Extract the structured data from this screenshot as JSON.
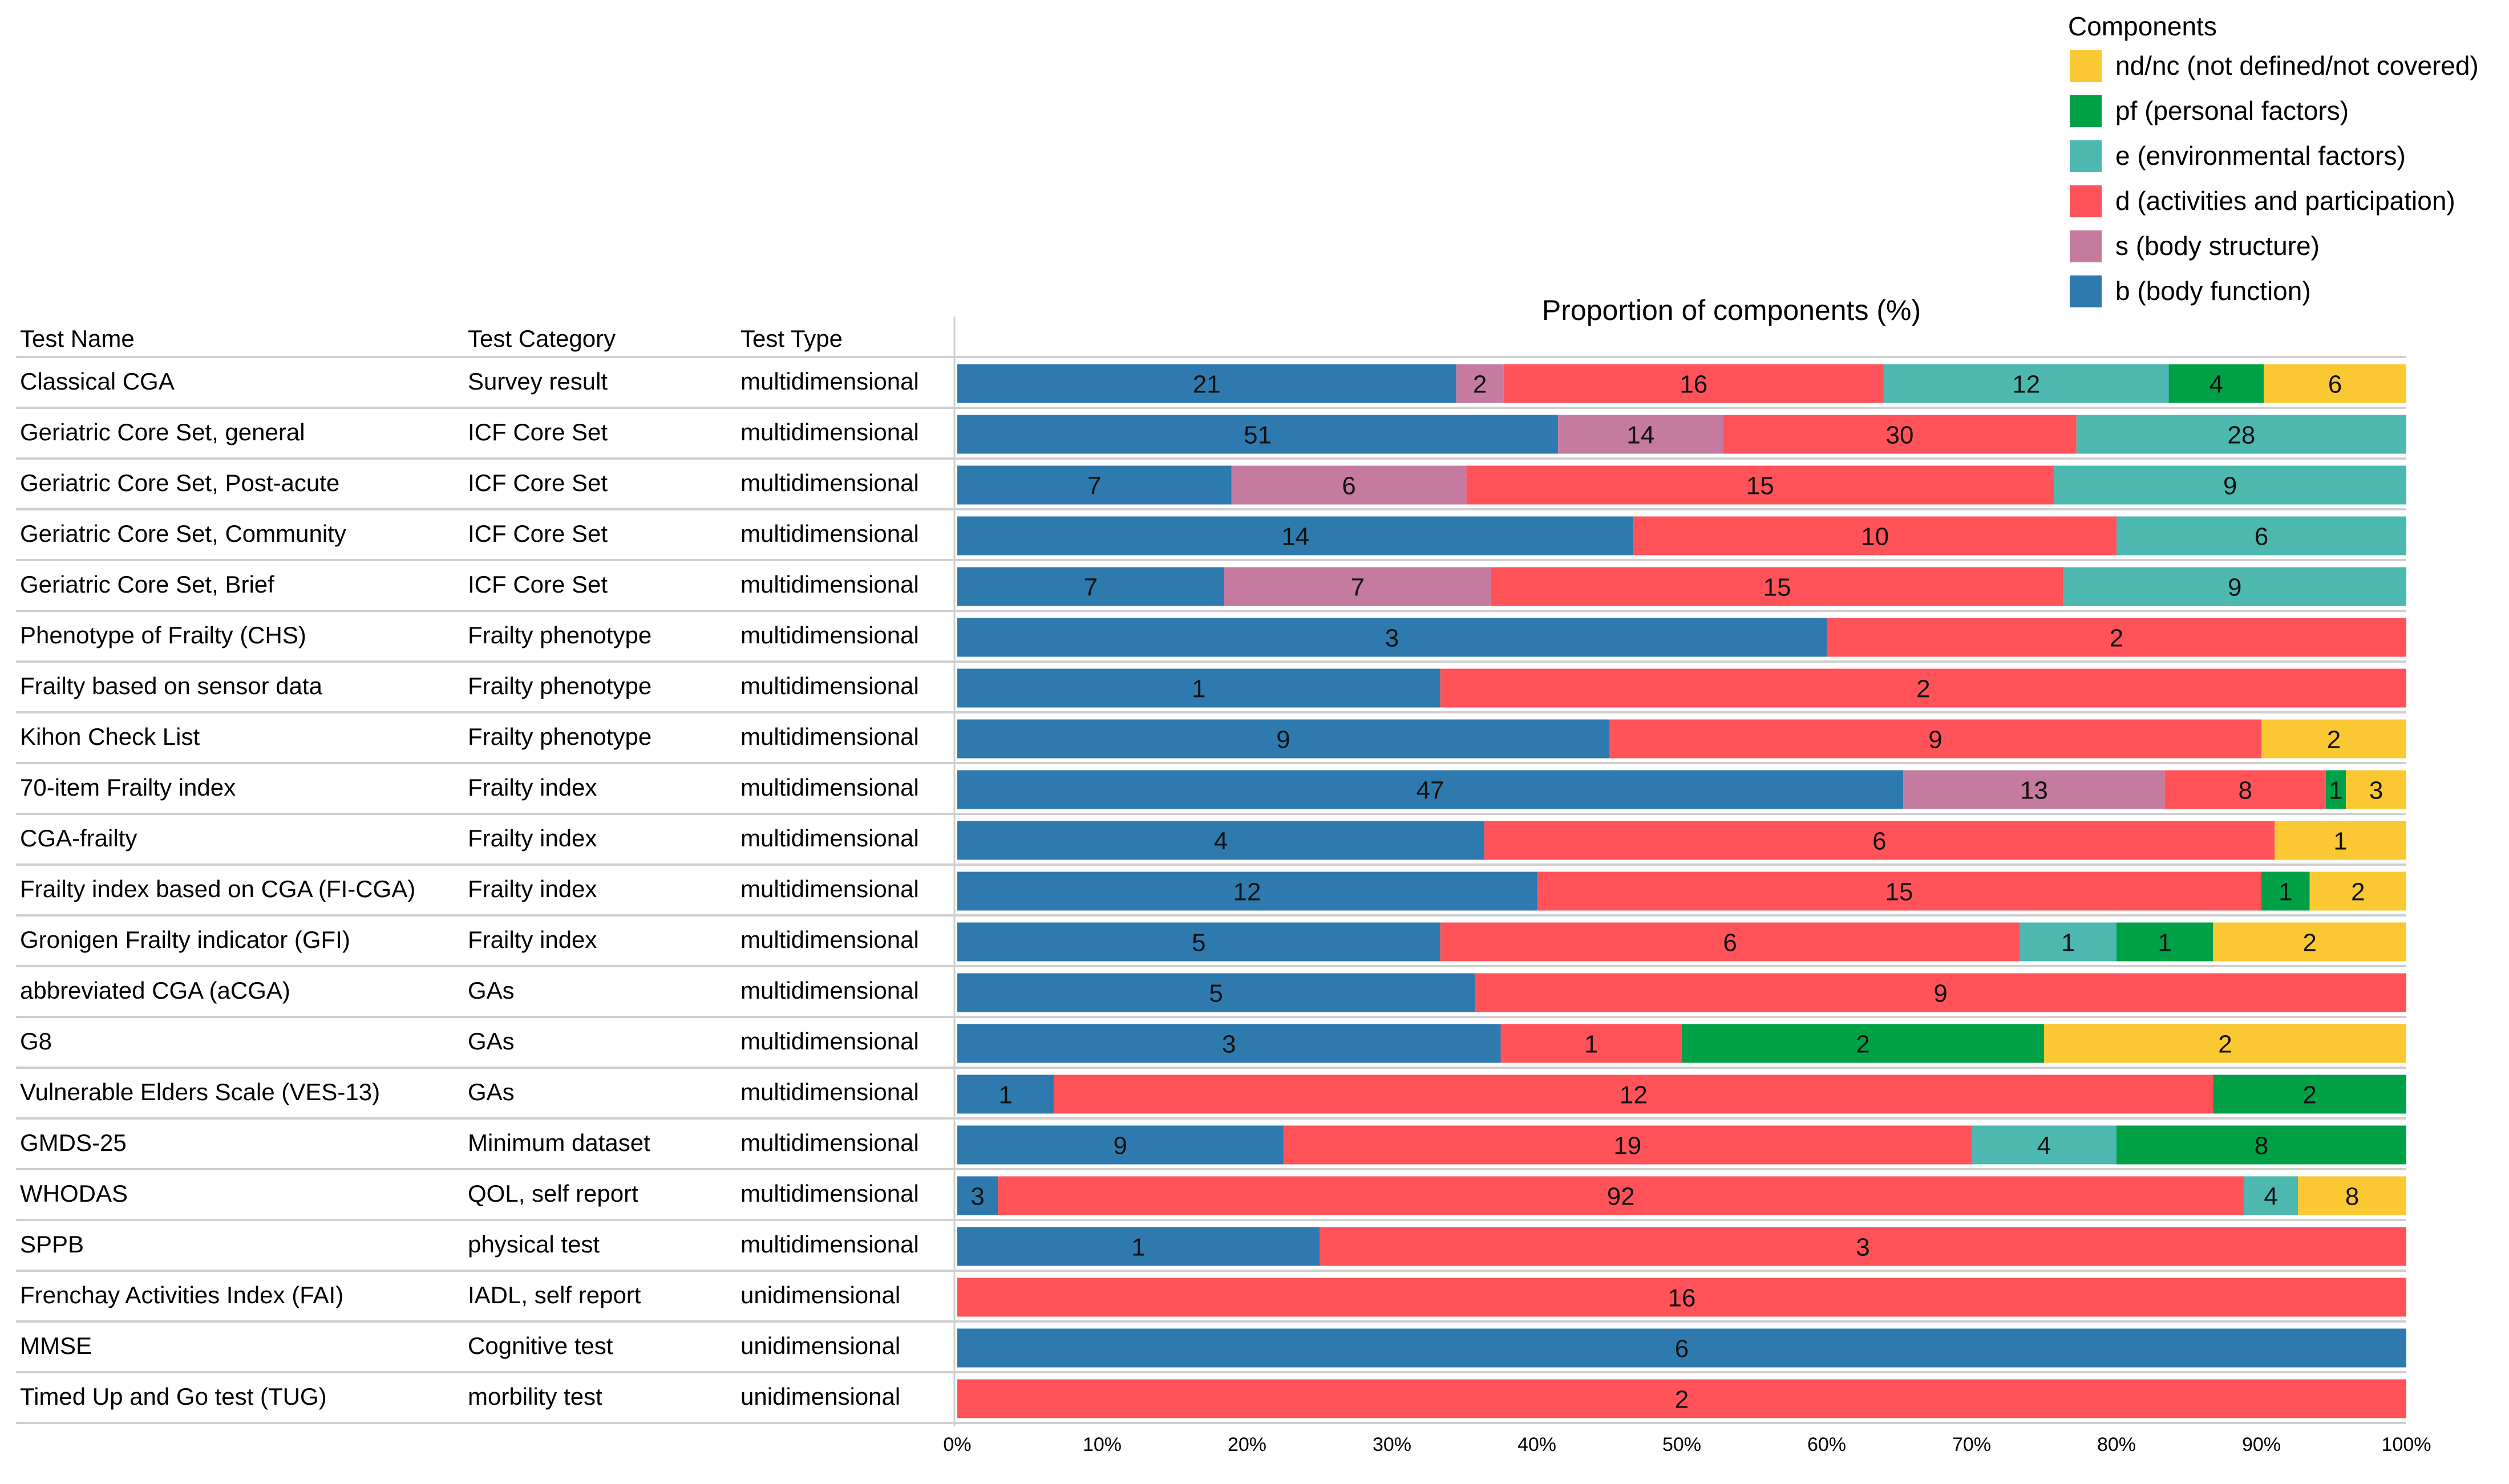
{
  "chart_data": {
    "type": "bar",
    "orientation": "horizontal",
    "stacked": "percent",
    "title": "Proportion of components (%)",
    "legend": {
      "title": "Components",
      "position": "top-right",
      "entries": [
        {
          "key": "nd",
          "label": "nd/nc (not defined/not covered)",
          "color": "#FAC832"
        },
        {
          "key": "pf",
          "label": "pf (personal factors)",
          "color": "#00A047"
        },
        {
          "key": "e",
          "label": "e (environmental factors)",
          "color": "#4CB8B0"
        },
        {
          "key": "d",
          "label": "d (activities and participation)",
          "color": "#FF5359"
        },
        {
          "key": "s",
          "label": "s (body structure)",
          "color": "#C57BA0"
        },
        {
          "key": "b",
          "label": "b (body function)",
          "color": "#2E7AAE"
        }
      ]
    },
    "columns": {
      "name": "Test Name",
      "category": "Test Category",
      "type": "Test Type"
    },
    "stack_order": [
      "b",
      "s",
      "d",
      "e",
      "pf",
      "nd"
    ],
    "xlim": [
      0,
      100
    ],
    "xticks": [
      "0%",
      "10%",
      "20%",
      "30%",
      "40%",
      "50%",
      "60%",
      "70%",
      "80%",
      "90%",
      "100%"
    ],
    "rows": [
      {
        "name": "Classical CGA",
        "category": "Survey result",
        "type": "multidimensional",
        "counts": {
          "b": 21,
          "s": 2,
          "d": 16,
          "e": 12,
          "pf": 4,
          "nd": 6
        }
      },
      {
        "name": "Geriatric Core Set, general",
        "category": "ICF Core Set",
        "type": "multidimensional",
        "counts": {
          "b": 51,
          "s": 14,
          "d": 30,
          "e": 28,
          "pf": 0,
          "nd": 0
        }
      },
      {
        "name": "Geriatric Core Set, Post-acute",
        "category": "ICF Core Set",
        "type": "multidimensional",
        "counts": {
          "b": 7,
          "s": 6,
          "d": 15,
          "e": 9,
          "pf": 0,
          "nd": 0
        }
      },
      {
        "name": "Geriatric Core Set, Community",
        "category": "ICF Core Set",
        "type": "multidimensional",
        "counts": {
          "b": 14,
          "s": 0,
          "d": 10,
          "e": 6,
          "pf": 0,
          "nd": 0
        }
      },
      {
        "name": "Geriatric Core Set, Brief",
        "category": "ICF Core Set",
        "type": "multidimensional",
        "counts": {
          "b": 7,
          "s": 7,
          "d": 15,
          "e": 9,
          "pf": 0,
          "nd": 0
        }
      },
      {
        "name": "Phenotype of Frailty (CHS)",
        "category": "Frailty phenotype",
        "type": "multidimensional",
        "counts": {
          "b": 3,
          "s": 0,
          "d": 2,
          "e": 0,
          "pf": 0,
          "nd": 0
        }
      },
      {
        "name": "Frailty based on sensor data",
        "category": "Frailty phenotype",
        "type": "multidimensional",
        "counts": {
          "b": 1,
          "s": 0,
          "d": 2,
          "e": 0,
          "pf": 0,
          "nd": 0
        }
      },
      {
        "name": "Kihon Check List",
        "category": "Frailty phenotype",
        "type": "multidimensional",
        "counts": {
          "b": 9,
          "s": 0,
          "d": 9,
          "e": 0,
          "pf": 0,
          "nd": 2
        }
      },
      {
        "name": "70-item Frailty index",
        "category": "Frailty index",
        "type": "multidimensional",
        "counts": {
          "b": 47,
          "s": 13,
          "d": 8,
          "e": 0,
          "pf": 1,
          "nd": 3
        }
      },
      {
        "name": "CGA-frailty",
        "category": "Frailty index",
        "type": "multidimensional",
        "counts": {
          "b": 4,
          "s": 0,
          "d": 6,
          "e": 0,
          "pf": 0,
          "nd": 1
        }
      },
      {
        "name": "Frailty index based on CGA (FI-CGA)",
        "category": "Frailty index",
        "type": "multidimensional",
        "counts": {
          "b": 12,
          "s": 0,
          "d": 15,
          "e": 0,
          "pf": 1,
          "nd": 2
        }
      },
      {
        "name": "Gronigen Frailty indicator (GFI)",
        "category": "Frailty index",
        "type": "multidimensional",
        "counts": {
          "b": 5,
          "s": 0,
          "d": 6,
          "e": 1,
          "pf": 1,
          "nd": 2
        }
      },
      {
        "name": "abbreviated CGA (aCGA)",
        "category": "GAs",
        "type": "multidimensional",
        "counts": {
          "b": 5,
          "s": 0,
          "d": 9,
          "e": 0,
          "pf": 0,
          "nd": 0
        }
      },
      {
        "name": "G8",
        "category": "GAs",
        "type": "multidimensional",
        "counts": {
          "b": 3,
          "s": 0,
          "d": 1,
          "e": 0,
          "pf": 2,
          "nd": 2
        }
      },
      {
        "name": "Vulnerable Elders Scale (VES-13)",
        "category": "GAs",
        "type": "multidimensional",
        "counts": {
          "b": 1,
          "s": 0,
          "d": 12,
          "e": 0,
          "pf": 2,
          "nd": 0
        }
      },
      {
        "name": "GMDS-25",
        "category": "Minimum dataset",
        "type": "multidimensional",
        "counts": {
          "b": 9,
          "s": 0,
          "d": 19,
          "e": 4,
          "pf": 8,
          "nd": 0
        }
      },
      {
        "name": "WHODAS",
        "category": "QOL, self report",
        "type": "multidimensional",
        "counts": {
          "b": 3,
          "s": 0,
          "d": 92,
          "e": 4,
          "pf": 0,
          "nd": 8
        }
      },
      {
        "name": "SPPB",
        "category": "physical test",
        "type": "multidimensional",
        "counts": {
          "b": 1,
          "s": 0,
          "d": 3,
          "e": 0,
          "pf": 0,
          "nd": 0
        }
      },
      {
        "name": "Frenchay Activities Index (FAI)",
        "category": "IADL, self report",
        "type": "unidimensional",
        "counts": {
          "b": 0,
          "s": 0,
          "d": 16,
          "e": 0,
          "pf": 0,
          "nd": 0
        }
      },
      {
        "name": "MMSE",
        "category": "Cognitive test",
        "type": "unidimensional",
        "counts": {
          "b": 6,
          "s": 0,
          "d": 0,
          "e": 0,
          "pf": 0,
          "nd": 0
        }
      },
      {
        "name": "Timed Up and Go test (TUG)",
        "category": "morbility test",
        "type": "unidimensional",
        "counts": {
          "b": 0,
          "s": 0,
          "d": 2,
          "e": 0,
          "pf": 0,
          "nd": 0
        }
      }
    ]
  }
}
